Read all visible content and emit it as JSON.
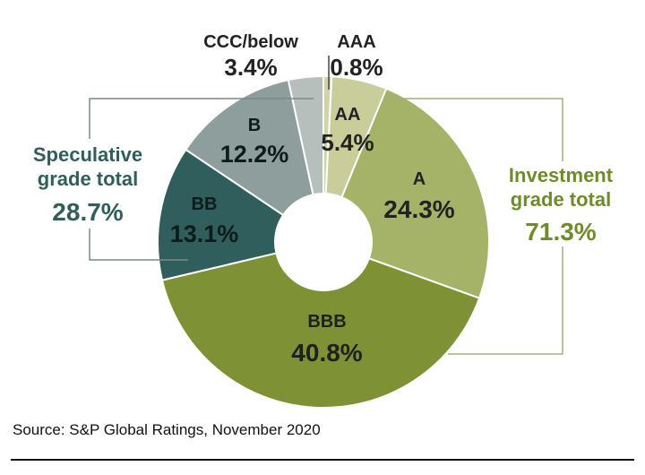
{
  "chart_data": {
    "type": "pie",
    "donut": true,
    "slices": [
      {
        "name": "AAA",
        "value": 0.8,
        "label": "0.8%",
        "color": "#cfd4a4",
        "group": "investment"
      },
      {
        "name": "AA",
        "value": 5.4,
        "label": "5.4%",
        "color": "#c8cd9a",
        "group": "investment"
      },
      {
        "name": "A",
        "value": 24.3,
        "label": "24.3%",
        "color": "#a4b367",
        "group": "investment"
      },
      {
        "name": "BBB",
        "value": 40.8,
        "label": "40.8%",
        "color": "#7e9235",
        "group": "investment"
      },
      {
        "name": "BB",
        "value": 13.1,
        "label": "13.1%",
        "color": "#2f5e5c",
        "group": "speculative"
      },
      {
        "name": "B",
        "value": 12.2,
        "label": "12.2%",
        "color": "#8e9e9c",
        "group": "speculative"
      },
      {
        "name": "CCC/below",
        "value": 3.4,
        "label": "3.4%",
        "color": "#b7bfbd",
        "group": "speculative"
      }
    ],
    "group_totals": [
      {
        "name": "Speculative grade total",
        "label_lines": [
          "Speculative",
          "grade total"
        ],
        "value": 28.7,
        "label": "28.7%",
        "color": "#2f5e5c"
      },
      {
        "name": "Investment grade total",
        "label_lines": [
          "Investment",
          "grade total"
        ],
        "value": 71.3,
        "label": "71.3%",
        "color": "#6e8c2a"
      }
    ]
  },
  "source": "Source: S&P Global Ratings, November 2020"
}
